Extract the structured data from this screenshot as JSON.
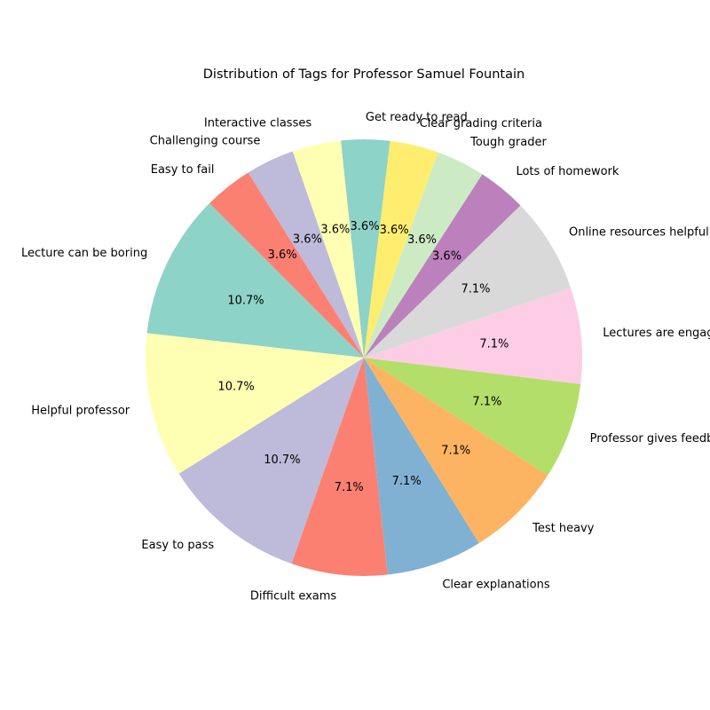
{
  "chart_data": {
    "type": "pie",
    "title": "Distribution of Tags for Professor Samuel Fountain",
    "start_angle_deg": 135,
    "direction": "counterclockwise",
    "slices": [
      {
        "label": "Lecture can be boring",
        "value": 10.7,
        "pct": "10.7%",
        "color": "#8dd3c7"
      },
      {
        "label": "Helpful professor",
        "value": 10.7,
        "pct": "10.7%",
        "color": "#ffffb3"
      },
      {
        "label": "Easy to pass",
        "value": 10.7,
        "pct": "10.7%",
        "color": "#bebada"
      },
      {
        "label": "Difficult exams",
        "value": 7.1,
        "pct": "7.1%",
        "color": "#fb8072"
      },
      {
        "label": "Clear explanations",
        "value": 7.1,
        "pct": "7.1%",
        "color": "#80b1d3"
      },
      {
        "label": "Test heavy",
        "value": 7.1,
        "pct": "7.1%",
        "color": "#fdb462"
      },
      {
        "label": "Professor gives feedback",
        "value": 7.1,
        "pct": "7.1%",
        "color": "#b3de69"
      },
      {
        "label": "Lectures are engaging",
        "value": 7.1,
        "pct": "7.1%",
        "color": "#fccde5"
      },
      {
        "label": "Online resources helpful",
        "value": 7.1,
        "pct": "7.1%",
        "color": "#d9d9d9"
      },
      {
        "label": "Lots of homework",
        "value": 3.6,
        "pct": "3.6%",
        "color": "#bc80bd"
      },
      {
        "label": "Tough grader",
        "value": 3.6,
        "pct": "3.6%",
        "color": "#ccebc5"
      },
      {
        "label": "Clear grading criteria",
        "value": 3.6,
        "pct": "3.6%",
        "color": "#ffed6f"
      },
      {
        "label": "Get ready to read",
        "value": 3.6,
        "pct": "3.6%",
        "color": "#8dd3c7"
      },
      {
        "label": "Interactive classes",
        "value": 3.6,
        "pct": "3.6%",
        "color": "#ffffb3"
      },
      {
        "label": "Challenging course",
        "value": 3.6,
        "pct": "3.6%",
        "color": "#bebada"
      },
      {
        "label": "Easy to fail",
        "value": 3.6,
        "pct": "3.6%",
        "color": "#fb8072"
      }
    ]
  }
}
